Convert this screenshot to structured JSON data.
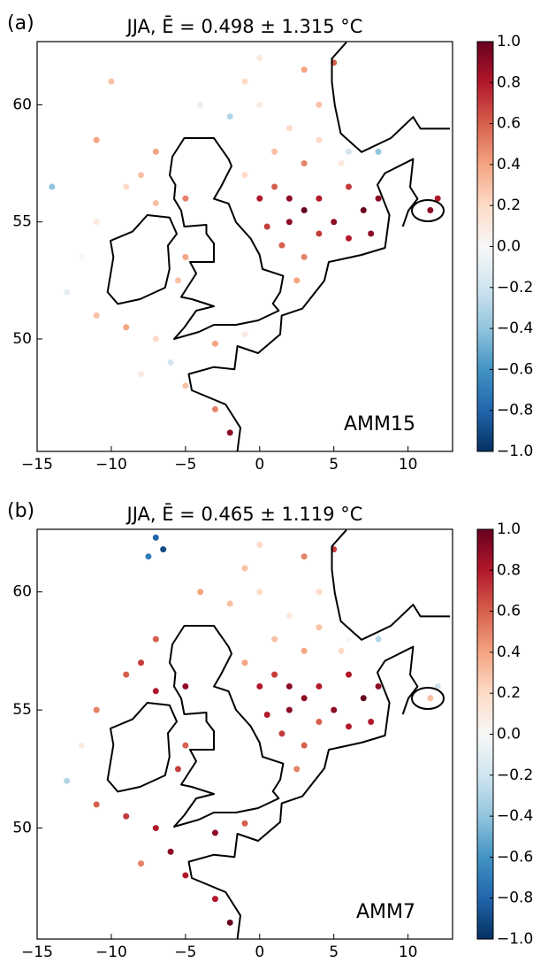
{
  "chart_data": [
    {
      "type": "scatter",
      "panel_label": "(a)",
      "title": "JJA,  Ē = 0.498 ± 1.315 °C",
      "annotation": "AMM15",
      "x": [
        2,
        3,
        4,
        5,
        6,
        7,
        1,
        0,
        2,
        4,
        6,
        3,
        1,
        2,
        4,
        0,
        -1,
        3,
        5.5,
        6,
        8,
        4,
        1.5,
        3,
        2.5,
        0.5,
        -1,
        8,
        7.5,
        11.5,
        12,
        5,
        0,
        -2,
        -4,
        -7,
        -8,
        -9,
        -11,
        -12,
        -13,
        -11,
        -9,
        -7,
        -6,
        -8,
        -5,
        -3,
        -2,
        -5,
        -5.5,
        -3,
        -1,
        -7,
        -5,
        -10,
        -14,
        -11
      ],
      "y": [
        56,
        55.5,
        56,
        55,
        56.5,
        55.5,
        56.5,
        56,
        55,
        54.5,
        54.3,
        57.5,
        58,
        59,
        60,
        60,
        61,
        61.5,
        57.5,
        58,
        58,
        58.5,
        54,
        53.5,
        52.5,
        54.8,
        57,
        56,
        54.5,
        55.5,
        56,
        61.8,
        62,
        59.5,
        60,
        58,
        57,
        56.5,
        55,
        53.5,
        52,
        51,
        50.5,
        50,
        49,
        48.5,
        48,
        47,
        46,
        53.5,
        52.5,
        49.8,
        50.2,
        55.8,
        56,
        61,
        56.5,
        58.5
      ],
      "values": [
        0.9,
        1.0,
        0.8,
        0.9,
        0.7,
        1.0,
        0.6,
        0.8,
        0.9,
        0.7,
        0.8,
        0.5,
        0.3,
        0.2,
        0.3,
        0.1,
        0.2,
        0.4,
        0.1,
        -0.2,
        -0.4,
        0.2,
        0.6,
        0.5,
        0.4,
        0.7,
        0.2,
        0.9,
        0.9,
        0.9,
        0.8,
        0.6,
        0.1,
        -0.3,
        -0.1,
        0.4,
        0.3,
        0.2,
        0.1,
        0.0,
        -0.1,
        0.3,
        0.4,
        0.2,
        -0.2,
        0.1,
        0.3,
        0.5,
        0.9,
        0.4,
        0.3,
        0.4,
        0.1,
        0.3,
        0.5,
        0.3,
        -0.4,
        0.4
      ],
      "xlim": [
        -15,
        13
      ],
      "ylim": [
        45.2,
        62.7
      ],
      "xticks": [
        {
          "value": -15,
          "label": "−15"
        },
        {
          "value": -10,
          "label": "−10"
        },
        {
          "value": -5,
          "label": "−5"
        },
        0,
        5,
        10
      ],
      "yticks": [
        50,
        55,
        60
      ],
      "clim": [
        -1,
        1
      ],
      "cticks": [
        {
          "value": 1,
          "label": "1.0"
        },
        {
          "value": 0.8,
          "label": "0.8"
        },
        {
          "value": 0.6,
          "label": "0.6"
        },
        {
          "value": 0.4,
          "label": "0.4"
        },
        {
          "value": 0.2,
          "label": "0.2"
        },
        {
          "value": 0,
          "label": "0.0"
        },
        {
          "value": -0.2,
          "label": "−0.2"
        },
        {
          "value": -0.4,
          "label": "−0.4"
        },
        {
          "value": -0.6,
          "label": "−0.6"
        },
        {
          "value": -0.8,
          "label": "−0.8"
        },
        {
          "value": -1,
          "label": "−1.0"
        }
      ],
      "colorscale": [
        "#053061",
        "#2166ac",
        "#4393c3",
        "#92c5de",
        "#d1e5f0",
        "#f7f7f7",
        "#fddbc7",
        "#f4a582",
        "#d6604d",
        "#b2182b",
        "#67001f"
      ]
    },
    {
      "type": "scatter",
      "panel_label": "(b)",
      "title": "JJA,  Ē = 0.465 ± 1.119 °C",
      "annotation": "AMM7",
      "x": [
        2,
        3,
        4,
        5,
        6,
        7,
        1,
        0,
        2,
        4,
        6,
        3,
        1,
        2,
        4,
        0,
        -1,
        3,
        5.5,
        6,
        8,
        4,
        1.5,
        3,
        2.5,
        0.5,
        -1,
        8,
        7.5,
        11.5,
        12,
        5,
        0,
        -2,
        -4,
        -7,
        -8,
        -9,
        -11,
        -12,
        -13,
        -11,
        -9,
        -7,
        -6,
        -8,
        -5,
        -3,
        -2,
        -5,
        -5.5,
        -3,
        -1,
        -7,
        -5,
        -7,
        -6.5,
        -7.5
      ],
      "y": [
        56,
        55.5,
        56,
        55,
        56.5,
        55.5,
        56.5,
        56,
        55,
        54.5,
        54.3,
        57.5,
        58,
        59,
        60,
        60,
        61,
        61.5,
        57.5,
        58,
        58,
        58.5,
        54,
        53.5,
        52.5,
        54.8,
        57,
        56,
        54.5,
        55.5,
        56,
        61.8,
        62,
        59.5,
        60,
        58,
        57,
        56.5,
        55,
        53.5,
        52,
        51,
        50.5,
        50,
        49,
        48.5,
        48,
        47,
        46,
        53.5,
        52.5,
        49.8,
        50.2,
        55.8,
        56,
        62.3,
        61.8,
        61.5
      ],
      "values": [
        0.9,
        0.9,
        0.8,
        0.9,
        0.8,
        1.0,
        0.7,
        0.8,
        0.9,
        0.6,
        0.8,
        0.4,
        0.3,
        0.1,
        0.2,
        0.2,
        0.3,
        0.5,
        0.2,
        0.0,
        -0.3,
        0.3,
        0.7,
        0.6,
        0.5,
        0.8,
        0.4,
        0.9,
        0.8,
        0.3,
        -0.2,
        0.7,
        0.2,
        0.3,
        0.4,
        0.6,
        0.7,
        0.6,
        0.5,
        0.1,
        -0.3,
        0.6,
        0.7,
        0.8,
        0.9,
        0.5,
        0.8,
        0.8,
        1.0,
        0.6,
        0.7,
        0.9,
        0.6,
        0.8,
        0.9,
        -0.8,
        -0.9,
        -0.7
      ],
      "xlim": [
        -15,
        13
      ],
      "ylim": [
        45.3,
        62.65
      ],
      "xticks": [
        {
          "value": -15,
          "label": "−15"
        },
        {
          "value": -10,
          "label": "−10"
        },
        {
          "value": -5,
          "label": "−5"
        },
        0,
        5,
        10
      ],
      "yticks": [
        50,
        55,
        60
      ],
      "clim": [
        -1,
        1
      ],
      "cticks": [
        {
          "value": 1,
          "label": "1.0"
        },
        {
          "value": 0.8,
          "label": "0.8"
        },
        {
          "value": 0.6,
          "label": "0.6"
        },
        {
          "value": 0.4,
          "label": "0.4"
        },
        {
          "value": 0.2,
          "label": "0.2"
        },
        {
          "value": 0,
          "label": "0.0"
        },
        {
          "value": -0.2,
          "label": "−0.2"
        },
        {
          "value": -0.4,
          "label": "−0.4"
        },
        {
          "value": -0.6,
          "label": "−0.6"
        },
        {
          "value": -0.8,
          "label": "−0.8"
        },
        {
          "value": -1,
          "label": "−1.0"
        }
      ],
      "colorscale": [
        "#053061",
        "#2166ac",
        "#4393c3",
        "#92c5de",
        "#d1e5f0",
        "#f7f7f7",
        "#fddbc7",
        "#f4a582",
        "#d6604d",
        "#b2182b",
        "#67001f"
      ]
    }
  ]
}
